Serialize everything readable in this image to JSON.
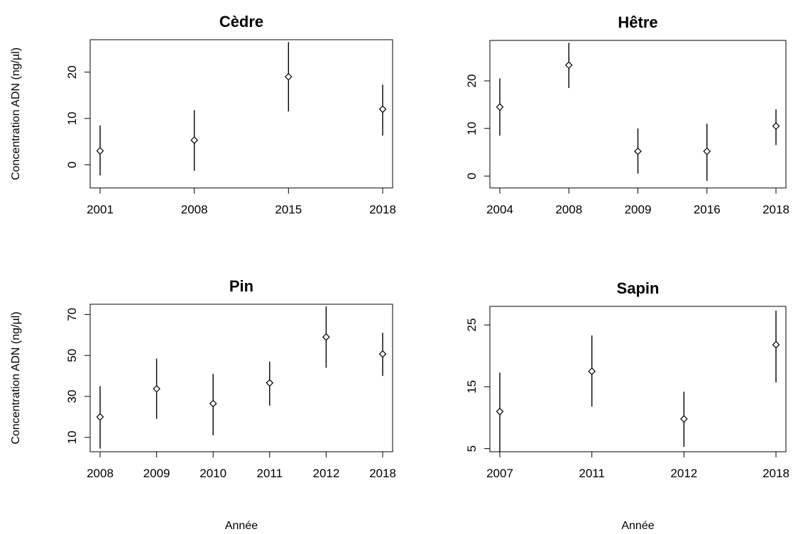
{
  "chart_data": [
    {
      "type": "scatter",
      "title": "Cèdre",
      "ylabel": "Concentration ADN (ng/µl)",
      "xlabel": "",
      "categories": [
        "2001",
        "2008",
        "2015",
        "2018"
      ],
      "values": [
        3,
        5.3,
        19,
        12
      ],
      "error_low": [
        -2.3,
        -1.3,
        11.5,
        6.3
      ],
      "error_high": [
        8.5,
        11.8,
        26.5,
        17.3
      ],
      "yticks": [
        0,
        10,
        20
      ],
      "ylim": [
        -5,
        27
      ],
      "error_bars": true
    },
    {
      "type": "scatter",
      "title": "Hêtre",
      "ylabel": "",
      "xlabel": "",
      "categories": [
        "2004",
        "2008",
        "2009",
        "2016",
        "2018"
      ],
      "values": [
        14.5,
        23.3,
        5.2,
        5.2,
        10.5
      ],
      "error_low": [
        8.5,
        18.5,
        0.5,
        -1,
        6.5
      ],
      "error_high": [
        20.5,
        28,
        10,
        11,
        14
      ],
      "yticks": [
        0,
        10,
        20
      ],
      "ylim": [
        -2.5,
        28.5
      ],
      "error_bars": true
    },
    {
      "type": "scatter",
      "title": "Pin",
      "ylabel": "Concentration ADN (ng/µl)",
      "xlabel": "Année",
      "categories": [
        "2008",
        "2009",
        "2010",
        "2011",
        "2012",
        "2018"
      ],
      "values": [
        20,
        33.7,
        26.5,
        36.6,
        59,
        50.7
      ],
      "error_low": [
        4.5,
        19,
        11,
        25.5,
        44,
        40
      ],
      "error_high": [
        35,
        48.5,
        41,
        47,
        74,
        61
      ],
      "yticks": [
        10,
        30,
        50,
        70
      ],
      "ylim": [
        3,
        75
      ],
      "error_bars": true
    },
    {
      "type": "scatter",
      "title": "Sapin",
      "ylabel": "",
      "xlabel": "Année",
      "categories": [
        "2007",
        "2011",
        "2012",
        "2018"
      ],
      "values": [
        11,
        17.5,
        9.8,
        21.8
      ],
      "error_low": [
        4.5,
        11.8,
        5.3,
        15.7
      ],
      "error_high": [
        17.3,
        23.3,
        14.2,
        27.3
      ],
      "yticks": [
        5,
        15,
        25
      ],
      "ylim": [
        4.5,
        28
      ],
      "error_bars": true
    }
  ]
}
